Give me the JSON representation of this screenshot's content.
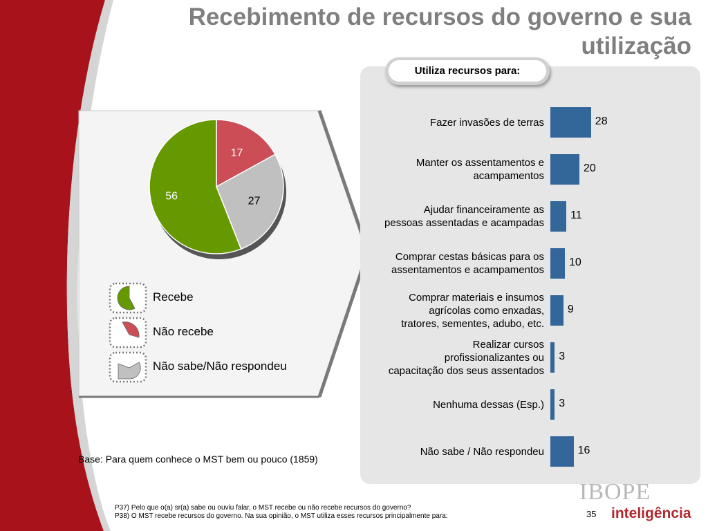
{
  "header": {
    "title": "Recebimento de recursos do governo e sua utilização"
  },
  "subtitle": "Utiliza recursos para:",
  "colors": {
    "accent_red": "#a8121a",
    "bar_blue": "#336699",
    "green": "#669900",
    "red": "#cc4d55",
    "gray": "#c0c0c0"
  },
  "chart_data": [
    {
      "type": "pie",
      "slices": [
        {
          "name": "Recebe",
          "value": 56,
          "color": "#669900"
        },
        {
          "name": "Não recebe",
          "value": 17,
          "color": "#cc4d55"
        },
        {
          "name": "Não sabe/Não respondeu",
          "value": 27,
          "color": "#c0c0c0"
        }
      ],
      "legend": [
        "Recebe",
        "Não recebe",
        "Não sabe/Não respondeu"
      ],
      "legend_position": "bottom-left"
    },
    {
      "type": "bar",
      "orientation": "horizontal",
      "title": "Utiliza recursos para:",
      "categories": [
        "Fazer invasões de terras",
        "Manter os assentamentos e acampamentos",
        "Ajudar financeiramente as pessoas assentadas e acampadas",
        "Comprar cestas básicas para os assentamentos e acampamentos",
        "Comprar materiais e insumos agrícolas como enxadas, tratores, sementes, adubo, etc.",
        "Realizar cursos profissionalizantes ou capacitação dos seus assentados",
        "Nenhuma dessas (Esp.)",
        "Não sabe / Não respondeu"
      ],
      "category_lines": [
        [
          "Fazer invasões de terras"
        ],
        [
          "Manter os assentamentos e",
          "acampamentos"
        ],
        [
          "Ajudar financeiramente as",
          "pessoas assentadas e acampadas"
        ],
        [
          "Comprar cestas básicas para os",
          "assentamentos e acampamentos"
        ],
        [
          "Comprar materiais e insumos",
          "agrícolas como enxadas,",
          "tratores, sementes, adubo, etc."
        ],
        [
          "Realizar cursos",
          "profissionalizantes ou",
          "capacitação dos seus assentados"
        ],
        [
          "Nenhuma dessas (Esp.)"
        ],
        [
          "Não sabe / Não respondeu"
        ]
      ],
      "values": [
        28,
        20,
        11,
        10,
        9,
        3,
        3,
        16
      ],
      "xlim": [
        0,
        100
      ],
      "grid": false
    }
  ],
  "base_note": "Base: Para quem conhece o MST bem ou pouco (1859)",
  "footnotes": [
    "P37) Pelo que o(a) sr(a) sabe ou ouviu falar, o MST recebe ou não recebe recursos do governo?",
    "P38) O MST recebe recursos do governo. Na sua opinião, o MST utiliza esses recursos principalmente para:"
  ],
  "page_number": "35",
  "logo": {
    "top": "IBOPE",
    "bottom": "inteligência"
  }
}
